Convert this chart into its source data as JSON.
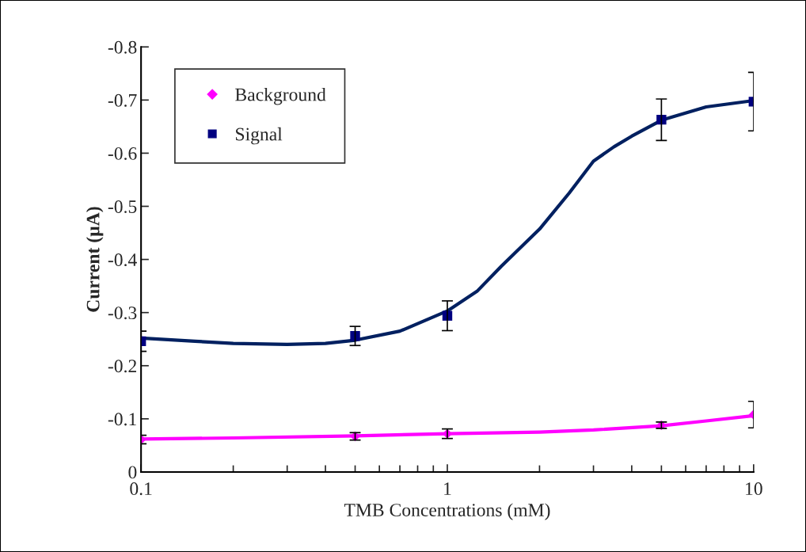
{
  "chart_data": {
    "type": "scatter",
    "xlabel": "TMB Concentrations (mM)",
    "ylabel": "Current (µA)",
    "log": "x",
    "xlim": [
      0.1,
      10
    ],
    "xticks": [
      0.1,
      1,
      10
    ],
    "ylim": [
      0,
      -0.8
    ],
    "yticks": [
      0,
      -0.1,
      -0.2,
      -0.3,
      -0.4,
      -0.5,
      -0.6,
      -0.7,
      -0.8
    ],
    "grid": false,
    "legend": "top left",
    "series": [
      {
        "type": "line",
        "color": "#ff00ff",
        "marker": "none",
        "line_style": "solid",
        "x": [
          0.1,
          0.2,
          0.5,
          1,
          2,
          3,
          5,
          7,
          10
        ],
        "values": [
          -0.062,
          -0.064,
          -0.068,
          -0.072,
          -0.075,
          -0.079,
          -0.087,
          -0.096,
          -0.106
        ]
      },
      {
        "type": "line",
        "color": "#002060",
        "marker": "none",
        "line_style": "solid",
        "x": [
          0.1,
          0.15,
          0.2,
          0.3,
          0.4,
          0.5,
          0.7,
          1,
          1.25,
          1.5,
          2,
          2.5,
          3,
          3.5,
          4,
          5,
          7,
          10
        ],
        "values": [
          -0.252,
          -0.246,
          -0.242,
          -0.24,
          -0.242,
          -0.248,
          -0.265,
          -0.303,
          -0.34,
          -0.387,
          -0.457,
          -0.525,
          -0.585,
          -0.612,
          -0.632,
          -0.662,
          -0.687,
          -0.699
        ]
      },
      {
        "name": "Background",
        "color": "#ff00ff",
        "marker": "diamond",
        "x": [
          0.1,
          0.5,
          1,
          5,
          10
        ],
        "values": [
          -0.061,
          -0.067,
          -0.072,
          -0.088,
          -0.108
        ],
        "errors": [
          0.008,
          0.007,
          0.009,
          0.006,
          0.025
        ]
      },
      {
        "name": "Signal",
        "color": "#000080",
        "marker": "square",
        "x": [
          0.1,
          0.5,
          1,
          5,
          10
        ],
        "values": [
          -0.246,
          -0.256,
          -0.294,
          -0.663,
          -0.697
        ],
        "errors": [
          0.019,
          0.018,
          0.028,
          0.039,
          0.055
        ]
      }
    ]
  }
}
